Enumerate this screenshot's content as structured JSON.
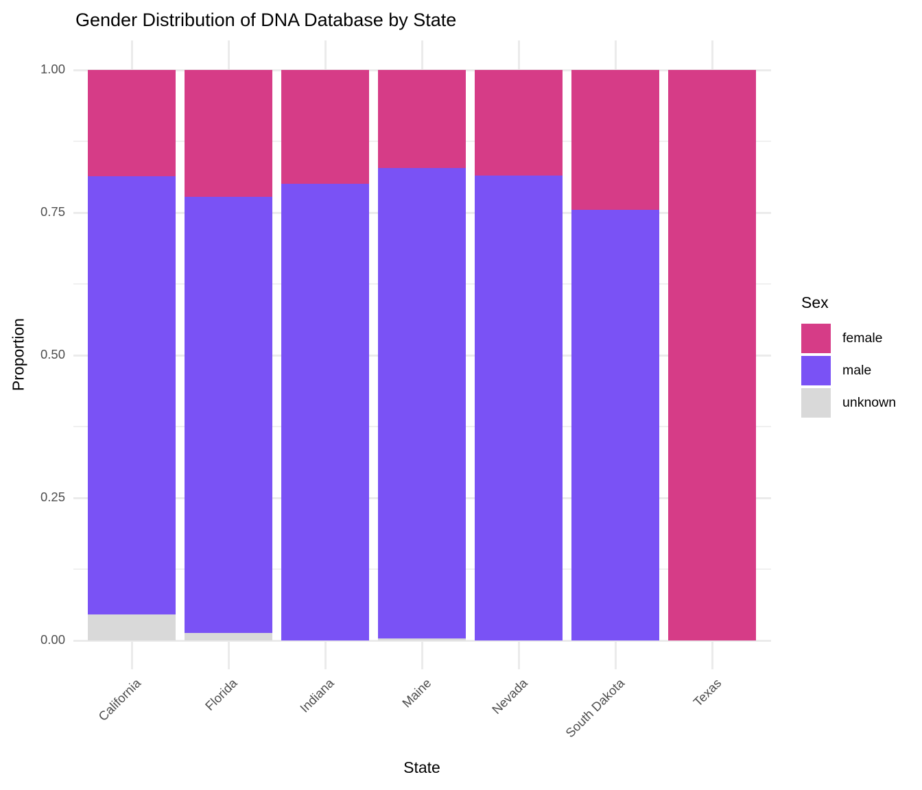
{
  "chart_data": {
    "type": "bar",
    "stacked": true,
    "title": "Gender Distribution of DNA Database by State",
    "xlabel": "State",
    "ylabel": "Proportion",
    "categories": [
      "California",
      "Florida",
      "Indiana",
      "Maine",
      "Nevada",
      "South Dakota",
      "Texas"
    ],
    "series": [
      {
        "name": "female",
        "color": "#D63C87",
        "values": [
          0.186,
          0.222,
          0.2,
          0.172,
          0.185,
          0.245,
          1.0
        ]
      },
      {
        "name": "male",
        "color": "#7A52F5",
        "values": [
          0.768,
          0.765,
          0.8,
          0.824,
          0.815,
          0.755,
          0.0
        ]
      },
      {
        "name": "unknown",
        "color": "#D9D9D9",
        "values": [
          0.046,
          0.013,
          0.0,
          0.004,
          0.0,
          0.0,
          0.0
        ]
      }
    ],
    "stack_order_bottom_to_top": [
      "unknown",
      "male",
      "female"
    ],
    "ylim": [
      0,
      1
    ],
    "y_axis": {
      "ticks": [
        {
          "label": "0.00",
          "value": 0.0
        },
        {
          "label": "0.25",
          "value": 0.25
        },
        {
          "label": "0.50",
          "value": 0.5
        },
        {
          "label": "0.75",
          "value": 0.75
        },
        {
          "label": "1.00",
          "value": 1.0
        }
      ],
      "minor_gridlines": [
        0.125,
        0.375,
        0.625,
        0.875
      ]
    },
    "grid": "on",
    "legend": {
      "title": "Sex",
      "position": "right",
      "entries": [
        {
          "label": "female",
          "color": "#D63C87"
        },
        {
          "label": "male",
          "color": "#7A52F5"
        },
        {
          "label": "unknown",
          "color": "#D9D9D9"
        }
      ]
    },
    "colors": {
      "gridline": "#EBEBEB",
      "tick_text": "#4D4D4D",
      "text": "#000000",
      "background": "#FFFFFF"
    }
  }
}
